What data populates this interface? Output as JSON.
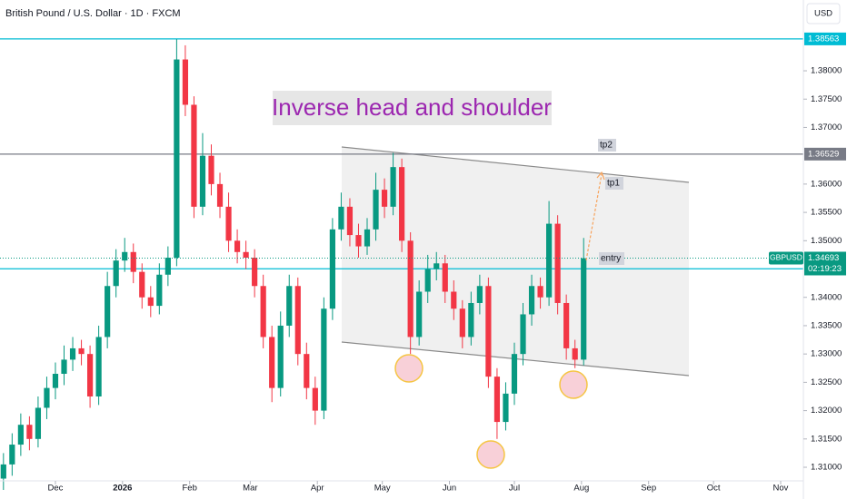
{
  "chart_data": {
    "type": "candlestick",
    "title": "British Pound / U.S. Dollar · 1D · FXCM",
    "currency": "USD",
    "annotation": "Inverse head and shoulder",
    "x": [
      -24,
      -20,
      -16,
      -12,
      -8,
      -4,
      0,
      4,
      8,
      12,
      16,
      20,
      24,
      28,
      32,
      36,
      40,
      44,
      48,
      52,
      56,
      60,
      64,
      68,
      72,
      76,
      80,
      84,
      88,
      92,
      96,
      100,
      104,
      108,
      112,
      116,
      120,
      124,
      128,
      132,
      136,
      140,
      144,
      148,
      152,
      156,
      160,
      164,
      168,
      172,
      176,
      180,
      184,
      188,
      192,
      196,
      200,
      204,
      208,
      212,
      216,
      220,
      224,
      228,
      232,
      236,
      240,
      244
    ],
    "open": [
      1.308,
      1.3105,
      1.314,
      1.3175,
      1.315,
      1.3205,
      1.324,
      1.3265,
      1.329,
      1.331,
      1.33,
      1.3225,
      1.333,
      1.342,
      1.3465,
      1.348,
      1.3445,
      1.34,
      1.3385,
      1.344,
      1.347,
      1.382,
      1.374,
      1.356,
      1.365,
      1.36,
      1.356,
      1.35,
      1.348,
      1.347,
      1.342,
      1.333,
      1.324,
      1.335,
      1.342,
      1.33,
      1.324,
      1.32,
      1.338,
      1.352,
      1.356,
      1.351,
      1.349,
      1.352,
      1.359,
      1.356,
      1.363,
      1.35,
      1.333,
      1.341,
      1.345,
      1.346,
      1.341,
      1.338,
      1.333,
      1.339,
      1.342,
      1.326,
      1.318,
      1.323,
      1.33,
      1.337,
      1.342,
      1.34,
      1.353,
      1.339,
      1.331,
      1.329
    ],
    "high": [
      1.3125,
      1.316,
      1.3195,
      1.319,
      1.3225,
      1.326,
      1.3285,
      1.3315,
      1.333,
      1.3325,
      1.3315,
      1.335,
      1.3445,
      1.3485,
      1.3505,
      1.3495,
      1.346,
      1.342,
      1.346,
      1.349,
      1.3856,
      1.3845,
      1.3755,
      1.369,
      1.367,
      1.362,
      1.3585,
      1.352,
      1.35,
      1.3485,
      1.344,
      1.335,
      1.3375,
      1.344,
      1.3435,
      1.332,
      1.326,
      1.34,
      1.354,
      1.3585,
      1.3575,
      1.353,
      1.354,
      1.362,
      1.361,
      1.3655,
      1.3645,
      1.3515,
      1.343,
      1.3475,
      1.348,
      1.3475,
      1.343,
      1.3395,
      1.341,
      1.344,
      1.3435,
      1.3275,
      1.325,
      1.332,
      1.339,
      1.344,
      1.3435,
      1.357,
      1.3545,
      1.3405,
      1.3325,
      1.3505
    ],
    "low": [
      1.306,
      1.3085,
      1.312,
      1.313,
      1.3135,
      1.3185,
      1.322,
      1.3245,
      1.327,
      1.328,
      1.3205,
      1.321,
      1.331,
      1.34,
      1.3445,
      1.3425,
      1.338,
      1.3365,
      1.337,
      1.342,
      1.3455,
      1.372,
      1.354,
      1.3545,
      1.358,
      1.354,
      1.348,
      1.346,
      1.345,
      1.34,
      1.331,
      1.3215,
      1.3225,
      1.333,
      1.328,
      1.322,
      1.3175,
      1.3185,
      1.336,
      1.35,
      1.349,
      1.347,
      1.3475,
      1.35,
      1.354,
      1.3545,
      1.348,
      1.33,
      1.3315,
      1.339,
      1.343,
      1.339,
      1.336,
      1.331,
      1.3315,
      1.337,
      1.324,
      1.315,
      1.3165,
      1.321,
      1.328,
      1.335,
      1.338,
      1.3385,
      1.337,
      1.329,
      1.3275,
      1.328
    ],
    "close": [
      1.3105,
      1.314,
      1.3175,
      1.315,
      1.3205,
      1.324,
      1.3265,
      1.329,
      1.331,
      1.33,
      1.3225,
      1.333,
      1.342,
      1.3465,
      1.348,
      1.3445,
      1.34,
      1.3385,
      1.344,
      1.347,
      1.382,
      1.374,
      1.356,
      1.365,
      1.36,
      1.356,
      1.35,
      1.348,
      1.347,
      1.342,
      1.333,
      1.324,
      1.335,
      1.342,
      1.33,
      1.324,
      1.32,
      1.338,
      1.352,
      1.356,
      1.351,
      1.349,
      1.352,
      1.359,
      1.356,
      1.363,
      1.35,
      1.333,
      1.341,
      1.345,
      1.346,
      1.341,
      1.338,
      1.333,
      1.339,
      1.342,
      1.326,
      1.318,
      1.323,
      1.33,
      1.337,
      1.342,
      1.34,
      1.353,
      1.339,
      1.331,
      1.329,
      1.3469
    ],
    "up_color": "#089981",
    "down_color": "#f23645",
    "xlim": [
      -25.6,
      345.5
    ],
    "xticks": [
      {
        "value": 0,
        "label": "Dec"
      },
      {
        "value": 31,
        "label": "2026"
      },
      {
        "value": 62,
        "label": "Feb"
      },
      {
        "value": 90,
        "label": "Mar"
      },
      {
        "value": 121,
        "label": "Apr"
      },
      {
        "value": 151,
        "label": "May"
      },
      {
        "value": 182,
        "label": "Jun"
      },
      {
        "value": 212,
        "label": "Jul"
      },
      {
        "value": 243,
        "label": "Aug"
      },
      {
        "value": 274,
        "label": "Sep"
      },
      {
        "value": 304,
        "label": "Oct"
      },
      {
        "value": 335,
        "label": "Nov"
      }
    ],
    "ylim": [
      1.3076,
      1.3925
    ],
    "yticks": [
      {
        "value": 1.31,
        "label": "1.31000"
      },
      {
        "value": 1.315,
        "label": "1.31500"
      },
      {
        "value": 1.32,
        "label": "1.32000"
      },
      {
        "value": 1.325,
        "label": "1.32500"
      },
      {
        "value": 1.33,
        "label": "1.33000"
      },
      {
        "value": 1.335,
        "label": "1.33500"
      },
      {
        "value": 1.34,
        "label": "1.34000"
      },
      {
        "value": 1.35,
        "label": "1.35000"
      },
      {
        "value": 1.355,
        "label": "1.35500"
      },
      {
        "value": 1.36,
        "label": "1.36000"
      },
      {
        "value": 1.37,
        "label": "1.37000"
      },
      {
        "value": 1.375,
        "label": "1.37500"
      },
      {
        "value": 1.38,
        "label": "1.38000"
      }
    ],
    "levels": [
      {
        "price": 1.38563,
        "color": "#00bcd4"
      },
      {
        "price": 1.36529,
        "color": "#787b86"
      },
      {
        "price": 1.34504,
        "color": "#00bcd4"
      }
    ],
    "symbol": "GBPUSD",
    "last_price": 1.34693,
    "countdown": "02:19:23",
    "targets": [
      {
        "label": "tp2"
      },
      {
        "label": "tp1"
      },
      {
        "label": "entry"
      }
    ]
  }
}
